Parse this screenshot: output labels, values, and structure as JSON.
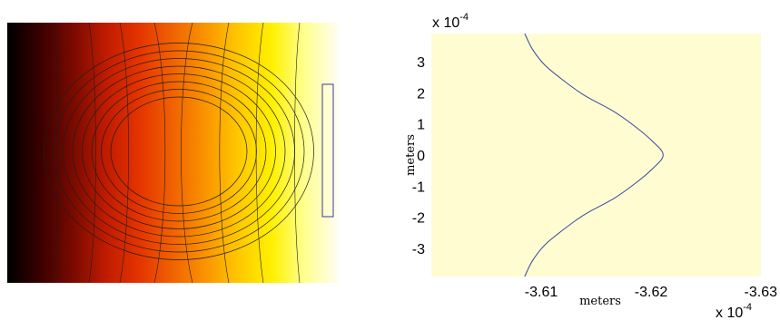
{
  "colors": {
    "heat_stops": [
      "#000000",
      "#3a0000",
      "#7a0a00",
      "#c11b00",
      "#e43400",
      "#f06200",
      "#f99400",
      "#ffc800",
      "#fff000",
      "#ffff90",
      "#fffdf0"
    ],
    "contour_line": "#1e1e1e",
    "rectangle_outline": "#3a3aa0",
    "plot_background": "#fffcd2",
    "curve": "#3a48a0"
  },
  "chart_data": [
    {
      "type": "heatmap",
      "title": "",
      "xlabel": "",
      "ylabel": "",
      "colormap": "hot",
      "gradient_direction": "left-to-right",
      "contour_rings": 8,
      "grid": false
    },
    {
      "type": "line",
      "title": "",
      "xlabel": "meters",
      "ylabel": "meters",
      "x_exponent_label": "x 10",
      "x_exponent_power": "-4",
      "y_exponent_label": "x 10",
      "y_exponent_power": "-4",
      "x_axis_reversed": true,
      "xlim": [
        -3.6,
        -3.63
      ],
      "ylim": [
        -3.9,
        3.9
      ],
      "x_ticks": [
        {
          "value": -3.61,
          "label": "-3.61"
        },
        {
          "value": -3.62,
          "label": "-3.62"
        },
        {
          "value": -3.63,
          "label": "-3.63"
        }
      ],
      "y_ticks": [
        {
          "value": 3,
          "label": "3"
        },
        {
          "value": 2,
          "label": "2"
        },
        {
          "value": 1,
          "label": "1"
        },
        {
          "value": 0,
          "label": "0"
        },
        {
          "value": -1,
          "label": "-1"
        },
        {
          "value": -2,
          "label": "-2"
        },
        {
          "value": -3,
          "label": "-3"
        }
      ],
      "grid": false,
      "series": [
        {
          "x": [
            -3.6085,
            -3.6092,
            -3.6103,
            -3.612,
            -3.614,
            -3.6166,
            -3.6186,
            -3.6201,
            -3.6211,
            -3.6201,
            -3.6186,
            -3.6166,
            -3.614,
            -3.612,
            -3.6103,
            -3.6092,
            -3.6085
          ],
          "y": [
            3.9,
            3.4,
            2.9,
            2.4,
            1.9,
            1.4,
            0.9,
            0.45,
            0.0,
            -0.45,
            -0.9,
            -1.4,
            -1.9,
            -2.4,
            -2.9,
            -3.4,
            -3.9
          ]
        }
      ]
    }
  ]
}
